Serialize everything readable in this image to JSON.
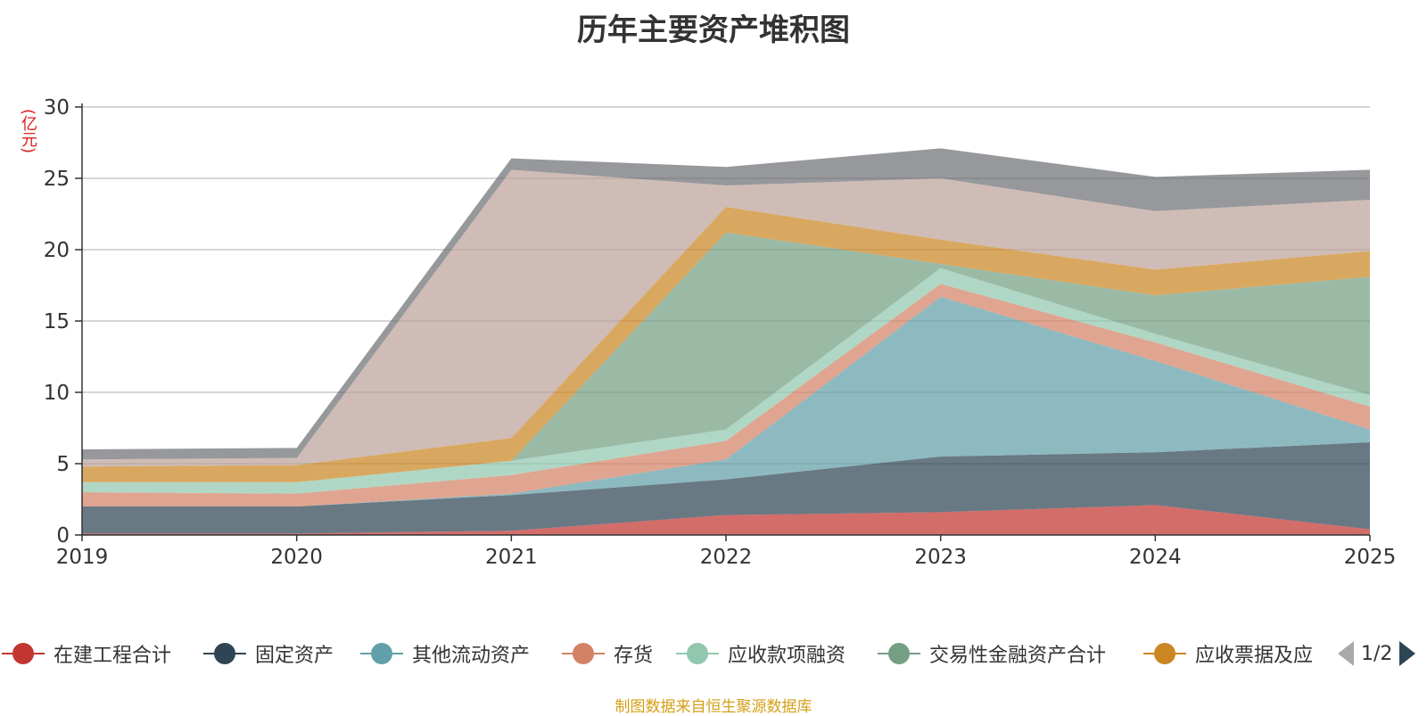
{
  "chart_data": {
    "type": "area",
    "stacked": true,
    "title": "历年主要资产堆积图",
    "unit_label": "(亿元)",
    "x": [
      "2019",
      "2020",
      "2021",
      "2022",
      "2023",
      "2024",
      "2025"
    ],
    "ylim": [
      0,
      30
    ],
    "yticks": [
      "0",
      "5",
      "10",
      "15",
      "20",
      "25",
      "30"
    ],
    "grid": true,
    "legend_position": "bottom",
    "series": [
      {
        "name": "在建工程合计",
        "color": "#c23531",
        "values": [
          0.1,
          0.1,
          0.3,
          1.4,
          1.6,
          2.1,
          0.4
        ]
      },
      {
        "name": "固定资产",
        "color": "#2f4554",
        "values": [
          1.9,
          1.9,
          2.5,
          2.5,
          3.9,
          3.7,
          6.1
        ]
      },
      {
        "name": "其他流动资产",
        "color": "#61a0a8",
        "values": [
          0.0,
          0.0,
          0.1,
          1.4,
          11.2,
          6.4,
          0.9
        ]
      },
      {
        "name": "存货",
        "color": "#d48265",
        "values": [
          1.0,
          0.9,
          1.3,
          1.3,
          0.9,
          1.3,
          1.6
        ]
      },
      {
        "name": "应收款项融资",
        "color": "#91c7ae",
        "values": [
          0.7,
          0.8,
          1.0,
          0.8,
          1.1,
          0.6,
          0.8
        ]
      },
      {
        "name": "交易性金融资产合计",
        "color": "#749f83",
        "values": [
          0.0,
          0.0,
          0.0,
          13.8,
          0.3,
          2.7,
          8.3
        ]
      },
      {
        "name": "应收票据及应",
        "color": "#ca8622",
        "values": [
          1.1,
          1.2,
          1.6,
          1.8,
          1.7,
          1.8,
          1.8
        ]
      },
      {
        "name": "",
        "color": "#bda29a",
        "values": [
          0.5,
          0.5,
          18.8,
          1.5,
          4.3,
          4.1,
          3.6
        ]
      },
      {
        "name": "",
        "color": "#6e7074",
        "values": [
          0.7,
          0.7,
          0.8,
          1.3,
          2.1,
          2.4,
          2.1
        ]
      }
    ]
  },
  "pager": {
    "text": "1/2"
  },
  "source": "制图数据来自恒生聚源数据库"
}
